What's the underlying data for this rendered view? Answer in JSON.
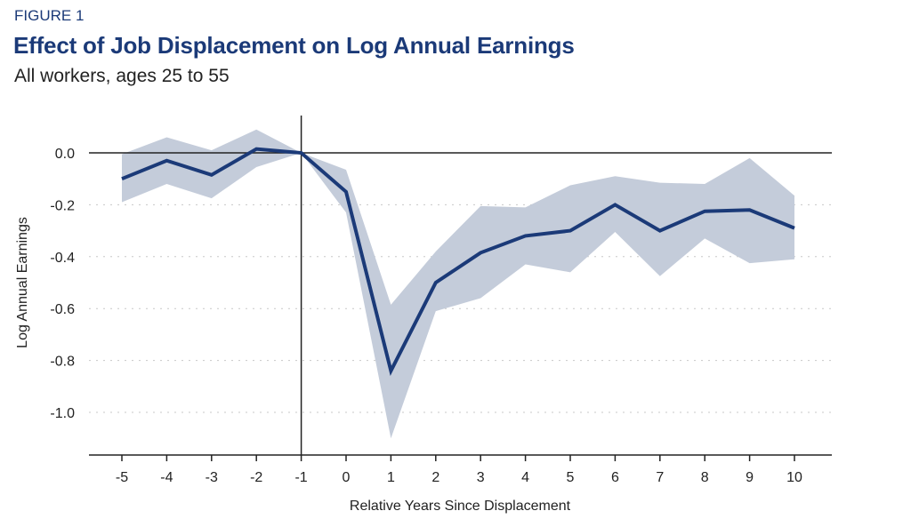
{
  "header": {
    "figure_label": "FIGURE 1",
    "title": "Effect of Job Displacement on Log Annual Earnings",
    "subtitle": "All workers, ages 25 to 55"
  },
  "chart_data": {
    "type": "line",
    "title": "Effect of Job Displacement on Log Annual Earnings",
    "subtitle": "All workers, ages 25 to 55",
    "xlabel": "Relative Years Since Displacement",
    "ylabel": "Log Annual Earnings",
    "x": [
      -5,
      -4,
      -3,
      -2,
      -1,
      0,
      1,
      2,
      3,
      4,
      5,
      6,
      7,
      8,
      9,
      10
    ],
    "xticks": [
      "-5",
      "-4",
      "-3",
      "-2",
      "-1",
      "0",
      "1",
      "2",
      "3",
      "4",
      "5",
      "6",
      "7",
      "8",
      "9",
      "10"
    ],
    "yticks": [
      "0.0",
      "-0.2",
      "-0.4",
      "-0.6",
      "-0.8",
      "-1.0"
    ],
    "ylim": [
      -1.15,
      0.15
    ],
    "grid": "horizontal dotted",
    "series": [
      {
        "values": [
          -0.1,
          -0.03,
          -0.085,
          0.015,
          0,
          -0.15,
          -0.84,
          -0.5,
          -0.385,
          -0.32,
          -0.3,
          -0.2,
          -0.3,
          -0.225,
          -0.22,
          -0.29
        ],
        "upper": [
          -0.005,
          0.06,
          0.01,
          0.09,
          0,
          -0.065,
          -0.585,
          -0.38,
          -0.205,
          -0.21,
          -0.125,
          -0.09,
          -0.115,
          -0.12,
          -0.02,
          -0.165
        ],
        "lower": [
          -0.19,
          -0.12,
          -0.175,
          -0.055,
          0,
          -0.23,
          -1.1,
          -0.61,
          -0.56,
          -0.43,
          -0.46,
          -0.305,
          -0.475,
          -0.33,
          -0.425,
          -0.41
        ]
      }
    ],
    "colors": {
      "line": "#1b3a78",
      "band": "#c4ccda",
      "title": "#1b3a78"
    }
  }
}
